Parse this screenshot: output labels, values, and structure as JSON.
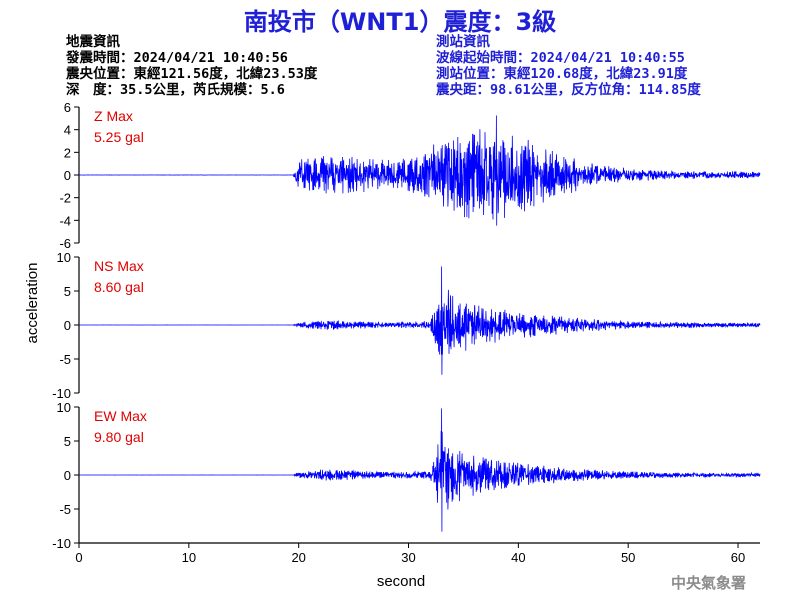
{
  "title": "南投市（WNT1）震度：3級",
  "event_info": {
    "heading": "地震資訊",
    "time": "發震時間：2024/04/21 10:40:56",
    "epicenter": "震央位置：東經121.56度，北緯23.53度",
    "depth_magnitude": "深　度：35.5公里，芮氏規模：5.6"
  },
  "station_info": {
    "heading": "測站資訊",
    "onset": "波線起始時間：2024/04/21 10:40:55",
    "location": "測站位置：東經120.68度，北緯23.91度",
    "distance": "震央距：98.61公里，反方位角：114.85度"
  },
  "credit": "中央氣象署",
  "colors": {
    "title": "#1f1fd6",
    "trace": "#0000ff",
    "annotation": "#e00000",
    "axis": "#000000",
    "credit": "#8c8c8c"
  },
  "chart_data": {
    "type": "line",
    "xlabel": "second",
    "ylabel": "acceleration",
    "xlim": [
      0,
      62
    ],
    "xticks": [
      "0",
      "10",
      "20",
      "30",
      "40",
      "50",
      "60"
    ],
    "xtick_values": [
      0,
      10,
      20,
      30,
      40,
      50,
      60
    ],
    "panels": [
      {
        "name": "Z",
        "annotation_line1": "Z Max",
        "annotation_line2": "5.25 gal",
        "peak": 5.25,
        "ylim": [
          -6,
          6
        ],
        "yticks": [
          "6",
          "4",
          "2",
          "0",
          "-2",
          "-4",
          "-6"
        ],
        "ytick_values": [
          6,
          4,
          2,
          0,
          -2,
          -4,
          -6
        ],
        "envelope": [
          [
            0,
            0.01
          ],
          [
            19.5,
            0.01
          ],
          [
            20,
            1.6
          ],
          [
            24,
            1.8
          ],
          [
            29,
            1.3
          ],
          [
            31.5,
            2.4
          ],
          [
            35,
            4.0
          ],
          [
            38,
            4.3
          ],
          [
            41,
            3.2
          ],
          [
            44,
            2.2
          ],
          [
            46,
            1.2
          ],
          [
            50,
            0.6
          ],
          [
            55,
            0.35
          ],
          [
            62,
            0.3
          ]
        ]
      },
      {
        "name": "NS",
        "annotation_line1": "NS Max",
        "annotation_line2": "8.60 gal",
        "peak": 8.6,
        "ylim": [
          -10,
          10
        ],
        "yticks": [
          "10",
          "5",
          "0",
          "-5",
          "-10"
        ],
        "ytick_values": [
          10,
          5,
          0,
          -5,
          -10
        ],
        "envelope": [
          [
            0,
            0.01
          ],
          [
            19.5,
            0.01
          ],
          [
            20,
            0.4
          ],
          [
            22,
            0.8
          ],
          [
            28,
            0.4
          ],
          [
            32,
            0.6
          ],
          [
            33,
            6.5
          ],
          [
            34,
            4.5
          ],
          [
            37,
            3.2
          ],
          [
            40,
            2.0
          ],
          [
            45,
            1.2
          ],
          [
            50,
            0.6
          ],
          [
            56,
            0.4
          ],
          [
            62,
            0.3
          ]
        ]
      },
      {
        "name": "EW",
        "annotation_line1": "EW Max",
        "annotation_line2": "9.80 gal",
        "peak": 9.8,
        "ylim": [
          -10,
          10
        ],
        "yticks": [
          "10",
          "5",
          "0",
          "-5",
          "-10"
        ],
        "ytick_values": [
          10,
          5,
          0,
          -5,
          -10
        ],
        "envelope": [
          [
            0,
            0.01
          ],
          [
            19.5,
            0.01
          ],
          [
            20,
            0.5
          ],
          [
            22,
            0.9
          ],
          [
            28,
            0.5
          ],
          [
            32,
            0.6
          ],
          [
            33,
            6.8
          ],
          [
            34,
            4.5
          ],
          [
            37,
            2.6
          ],
          [
            40,
            1.8
          ],
          [
            45,
            1.0
          ],
          [
            50,
            0.55
          ],
          [
            56,
            0.35
          ],
          [
            62,
            0.3
          ]
        ]
      }
    ]
  }
}
